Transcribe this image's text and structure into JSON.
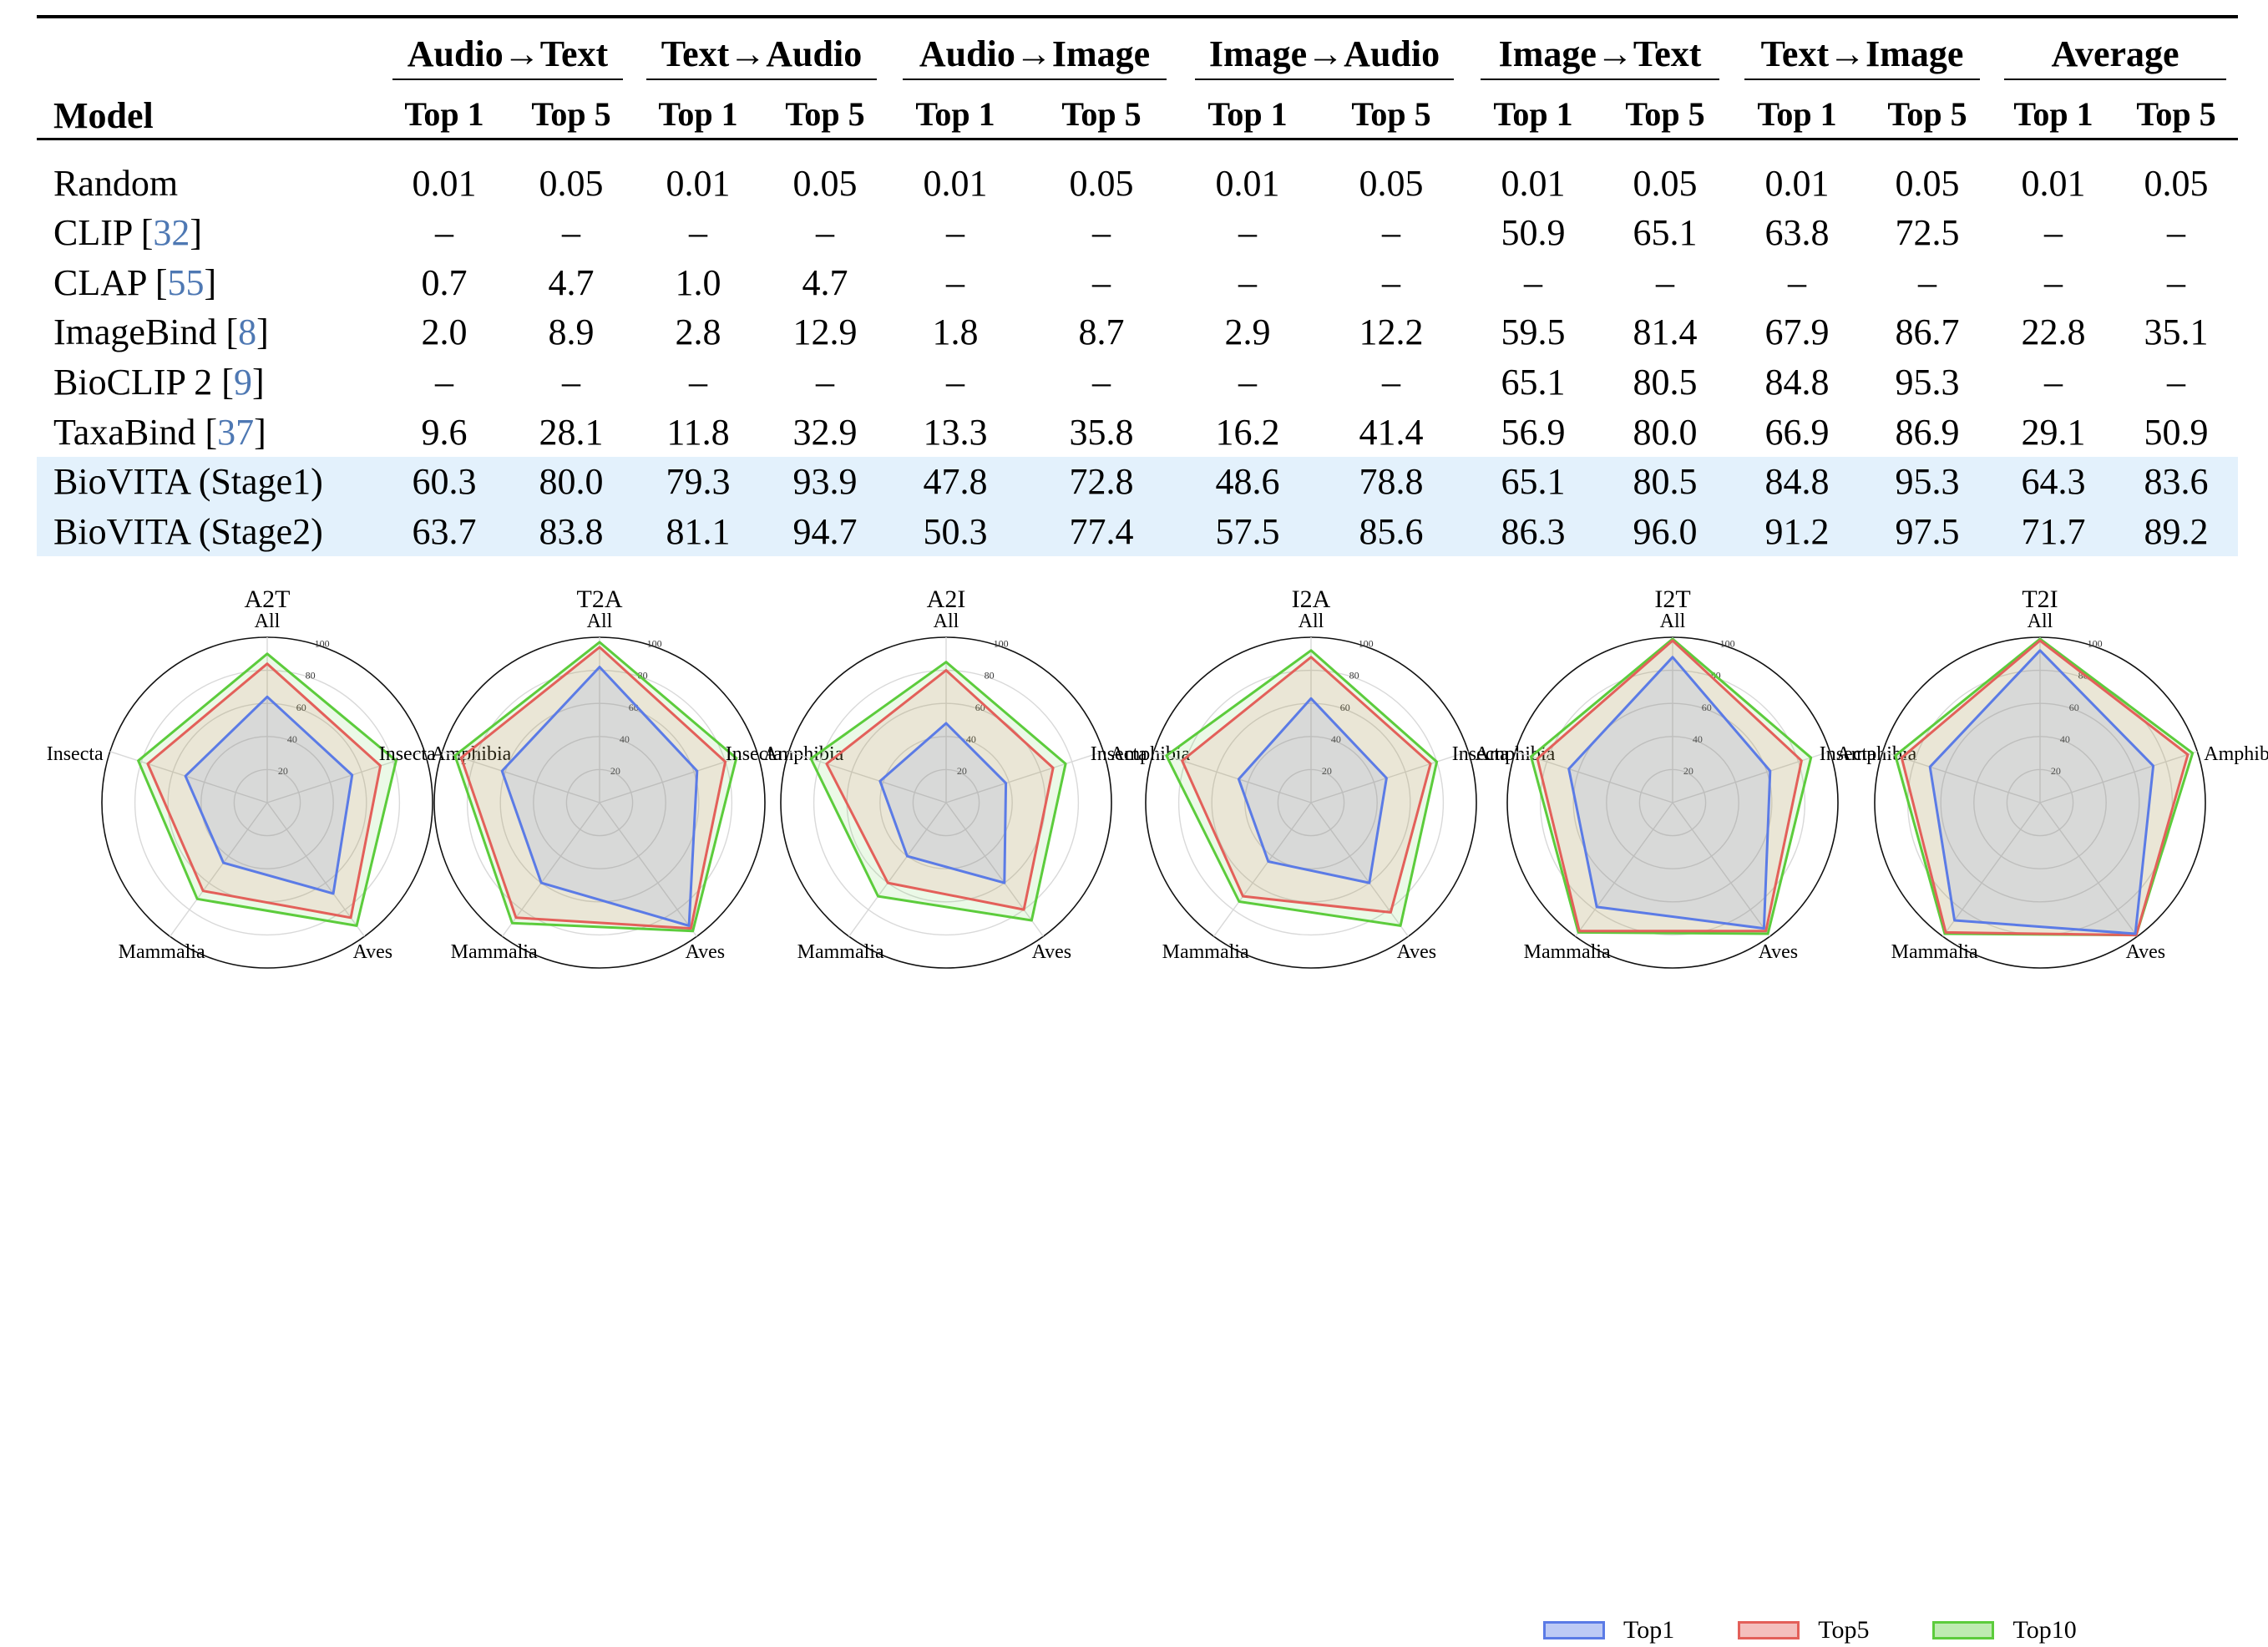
{
  "table": {
    "model_header": "Model",
    "groups": [
      "Audio→Text",
      "Text→Audio",
      "Audio→Image",
      "Image→Audio",
      "Image→Text",
      "Text→Image",
      "Average"
    ],
    "subheaders": [
      "Top 1",
      "Top 5"
    ],
    "rows": [
      {
        "model": "Random",
        "cite": "",
        "values": [
          "0.01",
          "0.05",
          "0.01",
          "0.05",
          "0.01",
          "0.05",
          "0.01",
          "0.05",
          "0.01",
          "0.05",
          "0.01",
          "0.05",
          "0.01",
          "0.05"
        ],
        "highlight": false
      },
      {
        "model": "CLIP",
        "cite": "32",
        "values": [
          "–",
          "–",
          "–",
          "–",
          "–",
          "–",
          "–",
          "–",
          "50.9",
          "65.1",
          "63.8",
          "72.5",
          "–",
          "–"
        ],
        "highlight": false
      },
      {
        "model": "CLAP",
        "cite": "55",
        "values": [
          "0.7",
          "4.7",
          "1.0",
          "4.7",
          "–",
          "–",
          "–",
          "–",
          "–",
          "–",
          "–",
          "–",
          "–",
          "–"
        ],
        "highlight": false
      },
      {
        "model": "ImageBind",
        "cite": "8",
        "values": [
          "2.0",
          "8.9",
          "2.8",
          "12.9",
          "1.8",
          "8.7",
          "2.9",
          "12.2",
          "59.5",
          "81.4",
          "67.9",
          "86.7",
          "22.8",
          "35.1"
        ],
        "highlight": false
      },
      {
        "model": "BioCLIP 2",
        "cite": "9",
        "values": [
          "–",
          "–",
          "–",
          "–",
          "–",
          "–",
          "–",
          "–",
          "65.1",
          "80.5",
          "84.8",
          "95.3",
          "–",
          "–"
        ],
        "highlight": false
      },
      {
        "model": "TaxaBind",
        "cite": "37",
        "values": [
          "9.6",
          "28.1",
          "11.8",
          "32.9",
          "13.3",
          "35.8",
          "16.2",
          "41.4",
          "56.9",
          "80.0",
          "66.9",
          "86.9",
          "29.1",
          "50.9"
        ],
        "highlight": false
      },
      {
        "model": "BioVITA (Stage1)",
        "cite": "",
        "values": [
          "60.3",
          "80.0",
          "79.3",
          "93.9",
          "47.8",
          "72.8",
          "48.6",
          "78.8",
          "65.1",
          "80.5",
          "84.8",
          "95.3",
          "64.3",
          "83.6"
        ],
        "highlight": true
      },
      {
        "model": "BioVITA (Stage2)",
        "cite": "",
        "values": [
          "63.7",
          "83.8",
          "81.1",
          "94.7",
          "50.3",
          "77.4",
          "57.5",
          "85.6",
          "86.3",
          "96.0",
          "91.2",
          "97.5",
          "71.7",
          "89.2"
        ],
        "highlight": true
      }
    ]
  },
  "chart_data": {
    "type": "radar",
    "axes": [
      "All",
      "Amphibia",
      "Aves",
      "Mammalia",
      "Insecta"
    ],
    "rlim": [
      0,
      100
    ],
    "ticks": [
      "20",
      "40",
      "60",
      "80",
      "100"
    ],
    "series_names": [
      "Top1",
      "Top5",
      "Top10"
    ],
    "colors": {
      "Top1": "#5b7be6",
      "Top5": "#e3605a",
      "Top10": "#5ccc3c"
    },
    "charts": [
      {
        "title": "A2T",
        "Top1": [
          64,
          54,
          68,
          45,
          52
        ],
        "Top5": [
          84,
          72,
          86,
          66,
          76
        ],
        "Top10": [
          90,
          82,
          92,
          72,
          82
        ]
      },
      {
        "title": "T2A",
        "Top1": [
          82,
          62,
          92,
          60,
          62
        ],
        "Top5": [
          94,
          80,
          94,
          86,
          88
        ],
        "Top10": [
          97,
          87,
          96,
          90,
          92
        ]
      },
      {
        "title": "A2I",
        "Top1": [
          48,
          38,
          60,
          40,
          42
        ],
        "Top5": [
          80,
          68,
          80,
          60,
          76
        ],
        "Top10": [
          85,
          76,
          88,
          70,
          86
        ]
      },
      {
        "title": "I2A",
        "Top1": [
          63,
          48,
          60,
          44,
          46
        ],
        "Top5": [
          88,
          76,
          82,
          70,
          82
        ],
        "Top10": [
          92,
          80,
          92,
          74,
          92
        ]
      },
      {
        "title": "I2T",
        "Top1": [
          88,
          62,
          94,
          78,
          66
        ],
        "Top5": [
          98,
          82,
          96,
          96,
          86
        ],
        "Top10": [
          99,
          88,
          98,
          97,
          90
        ]
      },
      {
        "title": "T2I",
        "Top1": [
          92,
          72,
          98,
          88,
          70
        ],
        "Top5": [
          98,
          94,
          99,
          97,
          88
        ],
        "Top10": [
          99,
          97,
          99,
          98,
          92
        ]
      }
    ]
  }
}
